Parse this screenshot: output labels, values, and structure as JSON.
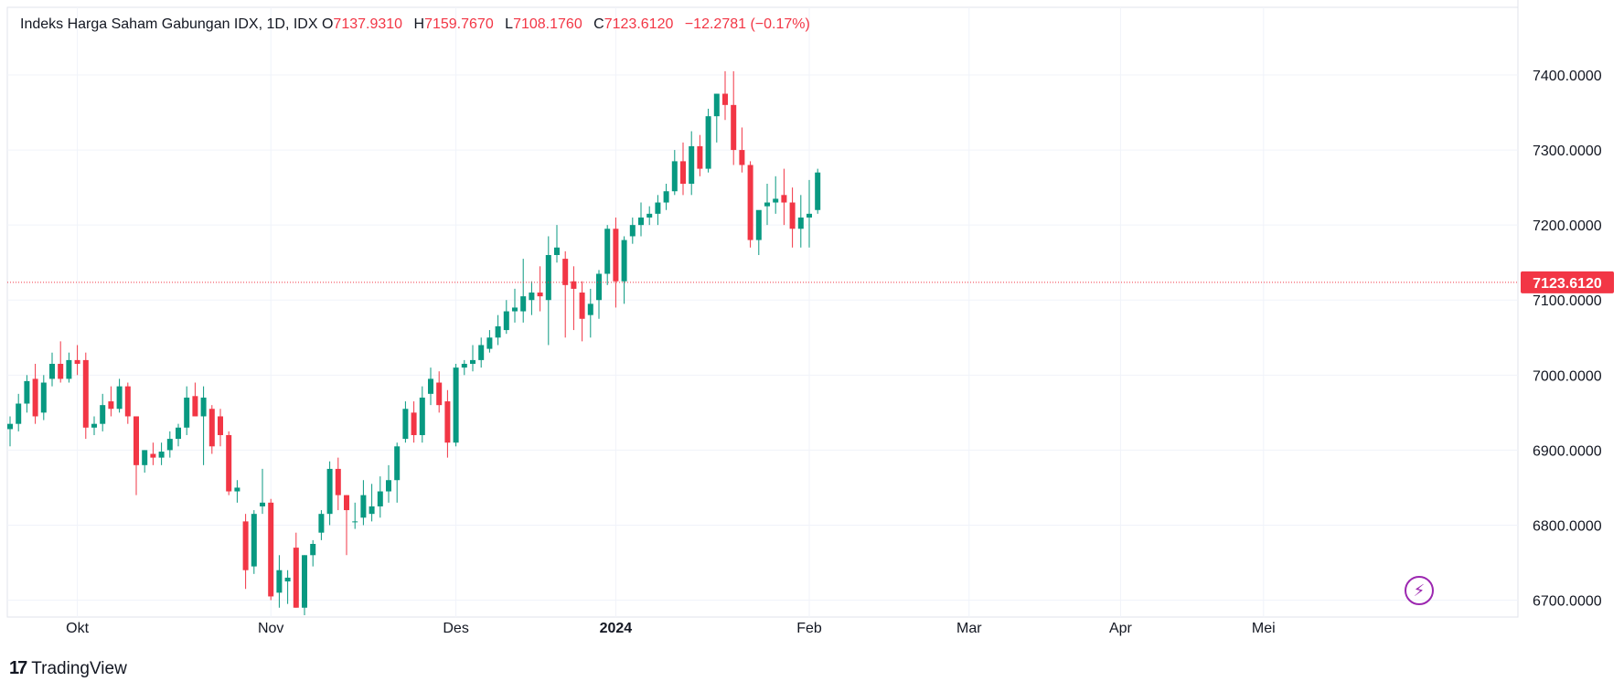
{
  "legend": {
    "symbol": "Indeks Harga Saham Gabungan IDX, 1D, IDX",
    "o_label": "O",
    "o_value": "7137.9310",
    "h_label": "H",
    "h_value": "7159.7670",
    "l_label": "L",
    "l_value": "7108.1760",
    "c_label": "C",
    "c_value": "7123.6120",
    "change": "−12.2781 (−0.17%)"
  },
  "brand": {
    "logo": "17",
    "name": "TradingView"
  },
  "icons": {
    "lightning": "lightning-icon"
  },
  "colors": {
    "up": "#089981",
    "down": "#f23645",
    "grid": "#f0f3fa",
    "text": "#131722"
  },
  "chart_data": {
    "type": "candlestick",
    "y_ticks": [
      "7400.0000",
      "7300.0000",
      "7200.0000",
      "7100.0000",
      "7000.0000",
      "6900.0000",
      "6800.0000",
      "6700.0000"
    ],
    "ylim": [
      6685,
      7460
    ],
    "x_ticks": [
      {
        "label": "Okt",
        "index": 8,
        "bold": false
      },
      {
        "label": "Nov",
        "index": 31,
        "bold": false
      },
      {
        "label": "Des",
        "index": 53,
        "bold": false
      },
      {
        "label": "2024",
        "index": 72,
        "bold": true
      },
      {
        "label": "Feb",
        "index": 95,
        "bold": false
      },
      {
        "label": "Mar",
        "index": 114,
        "bold": false
      },
      {
        "label": "Apr",
        "index": 132,
        "bold": false
      },
      {
        "label": "Mei",
        "index": 149,
        "bold": false
      }
    ],
    "last_price": "7123.6120",
    "ohlc": [
      [
        6928,
        6945,
        6905,
        6935
      ],
      [
        6935,
        6975,
        6925,
        6962
      ],
      [
        6962,
        7000,
        6950,
        6992
      ],
      [
        6995,
        7015,
        6935,
        6945
      ],
      [
        6950,
        7000,
        6940,
        6990
      ],
      [
        6995,
        7030,
        6985,
        7015
      ],
      [
        7015,
        7045,
        6990,
        6995
      ],
      [
        6995,
        7030,
        6990,
        7020
      ],
      [
        7020,
        7040,
        7000,
        7015
      ],
      [
        7020,
        7030,
        6915,
        6930
      ],
      [
        6930,
        6945,
        6920,
        6935
      ],
      [
        6935,
        6975,
        6925,
        6960
      ],
      [
        6965,
        6985,
        6945,
        6955
      ],
      [
        6955,
        6995,
        6950,
        6985
      ],
      [
        6985,
        6990,
        6935,
        6945
      ],
      [
        6945,
        6945,
        6840,
        6880
      ],
      [
        6880,
        6900,
        6870,
        6900
      ],
      [
        6895,
        6910,
        6880,
        6890
      ],
      [
        6890,
        6910,
        6880,
        6898
      ],
      [
        6900,
        6925,
        6890,
        6915
      ],
      [
        6915,
        6935,
        6905,
        6930
      ],
      [
        6930,
        6985,
        6920,
        6970
      ],
      [
        6972,
        6990,
        6945,
        6945
      ],
      [
        6945,
        6985,
        6880,
        6970
      ],
      [
        6955,
        6960,
        6895,
        6905
      ],
      [
        6945,
        6955,
        6905,
        6920
      ],
      [
        6920,
        6925,
        6840,
        6845
      ],
      [
        6845,
        6860,
        6830,
        6850
      ],
      [
        6805,
        6815,
        6715,
        6740
      ],
      [
        6745,
        6820,
        6735,
        6815
      ],
      [
        6825,
        6875,
        6815,
        6830
      ],
      [
        6830,
        6835,
        6700,
        6705
      ],
      [
        6710,
        6760,
        6690,
        6740
      ],
      [
        6725,
        6740,
        6695,
        6730
      ],
      [
        6770,
        6790,
        6690,
        6690
      ],
      [
        6690,
        6760,
        6680,
        6760
      ],
      [
        6760,
        6780,
        6745,
        6775
      ],
      [
        6790,
        6820,
        6780,
        6815
      ],
      [
        6815,
        6885,
        6800,
        6875
      ],
      [
        6875,
        6890,
        6820,
        6840
      ],
      [
        6840,
        6840,
        6760,
        6820
      ],
      [
        6805,
        6830,
        6795,
        6805
      ],
      [
        6810,
        6860,
        6800,
        6840
      ],
      [
        6815,
        6855,
        6805,
        6825
      ],
      [
        6825,
        6865,
        6810,
        6845
      ],
      [
        6845,
        6880,
        6830,
        6860
      ],
      [
        6860,
        6910,
        6830,
        6905
      ],
      [
        6915,
        6965,
        6910,
        6955
      ],
      [
        6950,
        6965,
        6910,
        6920
      ],
      [
        6920,
        6985,
        6910,
        6970
      ],
      [
        6975,
        7010,
        6960,
        6995
      ],
      [
        6990,
        7005,
        6950,
        6960
      ],
      [
        6965,
        6980,
        6890,
        6910
      ],
      [
        6910,
        7015,
        6905,
        7010
      ],
      [
        7010,
        7020,
        7000,
        7015
      ],
      [
        7015,
        7040,
        7005,
        7020
      ],
      [
        7020,
        7050,
        7010,
        7040
      ],
      [
        7035,
        7060,
        7030,
        7050
      ],
      [
        7050,
        7080,
        7040,
        7065
      ],
      [
        7060,
        7100,
        7055,
        7085
      ],
      [
        7085,
        7115,
        7070,
        7090
      ],
      [
        7085,
        7155,
        7070,
        7105
      ],
      [
        7100,
        7125,
        7080,
        7110
      ],
      [
        7110,
        7145,
        7085,
        7105
      ],
      [
        7100,
        7185,
        7040,
        7160
      ],
      [
        7160,
        7200,
        7150,
        7170
      ],
      [
        7155,
        7165,
        7050,
        7120
      ],
      [
        7125,
        7145,
        7060,
        7115
      ],
      [
        7110,
        7125,
        7045,
        7075
      ],
      [
        7080,
        7115,
        7050,
        7095
      ],
      [
        7100,
        7140,
        7075,
        7135
      ],
      [
        7135,
        7200,
        7120,
        7195
      ],
      [
        7195,
        7210,
        7090,
        7125
      ],
      [
        7125,
        7185,
        7095,
        7180
      ],
      [
        7185,
        7210,
        7175,
        7200
      ],
      [
        7200,
        7230,
        7185,
        7210
      ],
      [
        7210,
        7225,
        7200,
        7215
      ],
      [
        7215,
        7240,
        7200,
        7230
      ],
      [
        7230,
        7255,
        7220,
        7245
      ],
      [
        7245,
        7300,
        7240,
        7285
      ],
      [
        7285,
        7310,
        7240,
        7255
      ],
      [
        7255,
        7325,
        7240,
        7305
      ],
      [
        7305,
        7320,
        7265,
        7275
      ],
      [
        7275,
        7355,
        7270,
        7345
      ],
      [
        7345,
        7375,
        7310,
        7375
      ],
      [
        7375,
        7405,
        7340,
        7360
      ],
      [
        7360,
        7405,
        7280,
        7300
      ],
      [
        7300,
        7330,
        7270,
        7280
      ],
      [
        7280,
        7285,
        7170,
        7180
      ],
      [
        7180,
        7215,
        7160,
        7220
      ],
      [
        7225,
        7255,
        7200,
        7230
      ],
      [
        7230,
        7265,
        7215,
        7235
      ],
      [
        7240,
        7275,
        7200,
        7230
      ],
      [
        7230,
        7250,
        7170,
        7195
      ],
      [
        7195,
        7240,
        7170,
        7210
      ],
      [
        7210,
        7260,
        7170,
        7215
      ],
      [
        7220,
        7275,
        7215,
        7270
      ]
    ]
  }
}
